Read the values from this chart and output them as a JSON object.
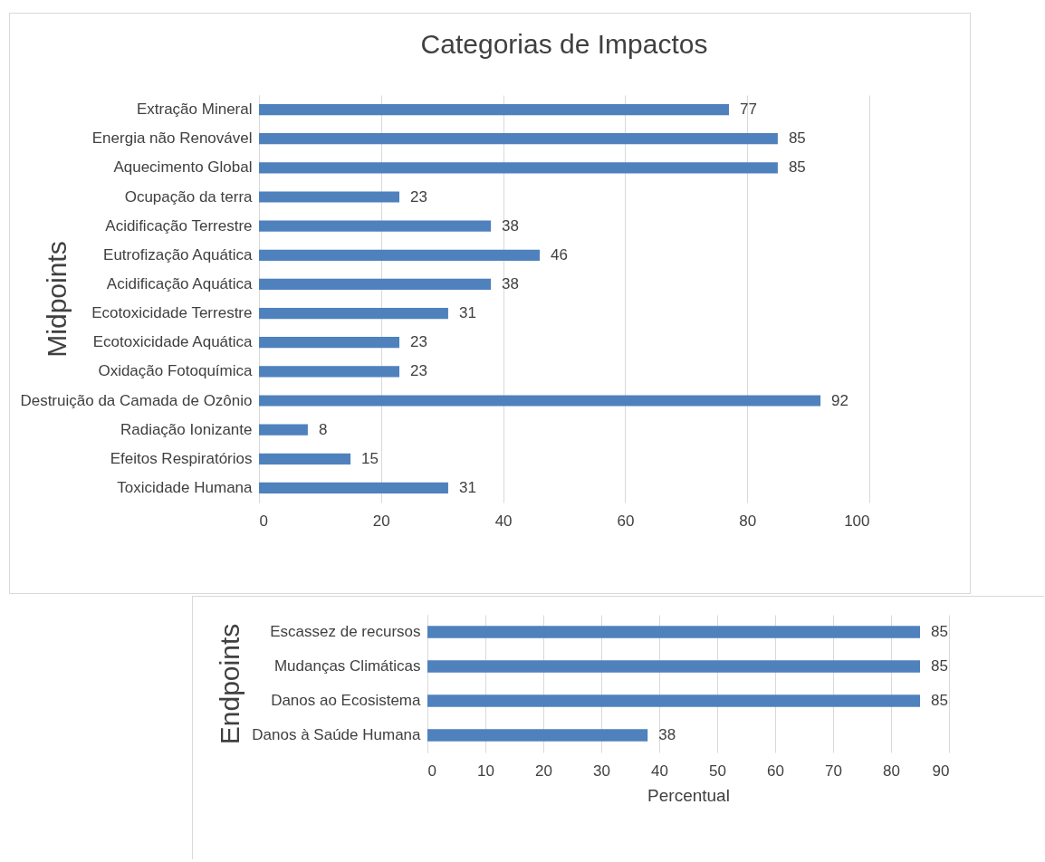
{
  "chart_data": [
    {
      "type": "bar",
      "orientation": "horizontal",
      "title": "Categorias de Impactos",
      "ylabel": "Midpoints",
      "categories": [
        "Extração Mineral",
        "Energia não Renovável",
        "Aquecimento Global",
        "Ocupação da terra",
        "Acidificação Terrestre",
        "Eutrofização Aquática",
        "Acidificação Aquática",
        "Ecotoxicidade Terrestre",
        "Ecotoxicidade Aquática",
        "Oxidação Fotoquímica",
        "Destruição da Camada de Ozônio",
        "Radiação Ionizante",
        "Efeitos Respiratórios",
        "Toxicidade Humana"
      ],
      "values": [
        77,
        85,
        85,
        23,
        38,
        46,
        38,
        31,
        23,
        23,
        92,
        8,
        15,
        31
      ],
      "color": "#4f81bd",
      "xlim": [
        0,
        100
      ],
      "xticks": [
        0,
        20,
        40,
        60,
        80,
        100
      ],
      "grid": "x",
      "data_labels": true
    },
    {
      "type": "bar",
      "orientation": "horizontal",
      "ylabel": "Endpoints",
      "xlabel": "Percentual",
      "categories": [
        "Escassez de recursos",
        "Mudanças Climáticas",
        "Danos ao Ecosistema",
        "Danos à Saúde Humana"
      ],
      "values": [
        85,
        85,
        85,
        38
      ],
      "color": "#4f81bd",
      "xlim": [
        0,
        90
      ],
      "xticks": [
        0,
        10,
        20,
        30,
        40,
        50,
        60,
        70,
        80,
        90
      ],
      "grid": "x",
      "data_labels": true
    }
  ]
}
